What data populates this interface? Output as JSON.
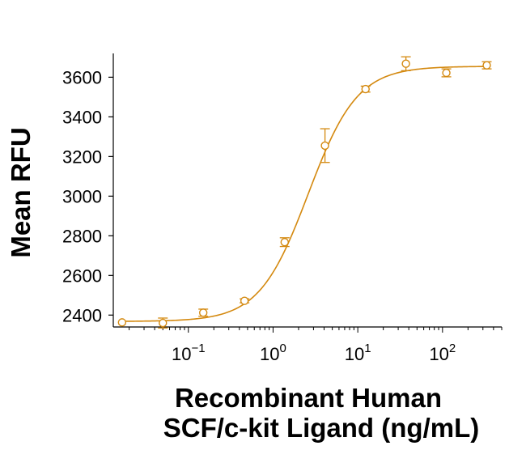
{
  "chart_data": {
    "type": "scatter",
    "title": "",
    "xlabel_line1": "Recombinant Human",
    "xlabel_line2": "SCF/c-kit Ligand (ng/mL)",
    "ylabel": "Mean RFU",
    "x_scale": "log10",
    "xlim": [
      0.013,
      500
    ],
    "ylim": [
      2340,
      3720
    ],
    "y_ticks": [
      "2400",
      "2600",
      "2800",
      "3000",
      "3200",
      "3400",
      "3600"
    ],
    "x_ticks": [
      {
        "base": "10",
        "exp": "−1",
        "value": 0.1
      },
      {
        "base": "10",
        "exp": "0",
        "value": 1
      },
      {
        "base": "10",
        "exp": "1",
        "value": 10
      },
      {
        "base": "10",
        "exp": "2",
        "value": 100
      }
    ],
    "grid": false,
    "color": "#D4890F",
    "series": [
      {
        "points": [
          {
            "x": 0.0165,
            "y": 2363,
            "err": 0
          },
          {
            "x": 0.05,
            "y": 2360,
            "err": 25
          },
          {
            "x": 0.15,
            "y": 2412,
            "err": 18
          },
          {
            "x": 0.46,
            "y": 2472,
            "err": 10
          },
          {
            "x": 1.37,
            "y": 2768,
            "err": 22
          },
          {
            "x": 4.1,
            "y": 3255,
            "err": 85
          },
          {
            "x": 12.35,
            "y": 3540,
            "err": 15
          },
          {
            "x": 37,
            "y": 3668,
            "err": 35
          },
          {
            "x": 111,
            "y": 3622,
            "err": 20
          },
          {
            "x": 333,
            "y": 3660,
            "err": 18
          }
        ]
      }
    ],
    "fit": {
      "bottom": 2368,
      "top": 3655,
      "ec50": 2.6,
      "hill": 1.5
    }
  }
}
